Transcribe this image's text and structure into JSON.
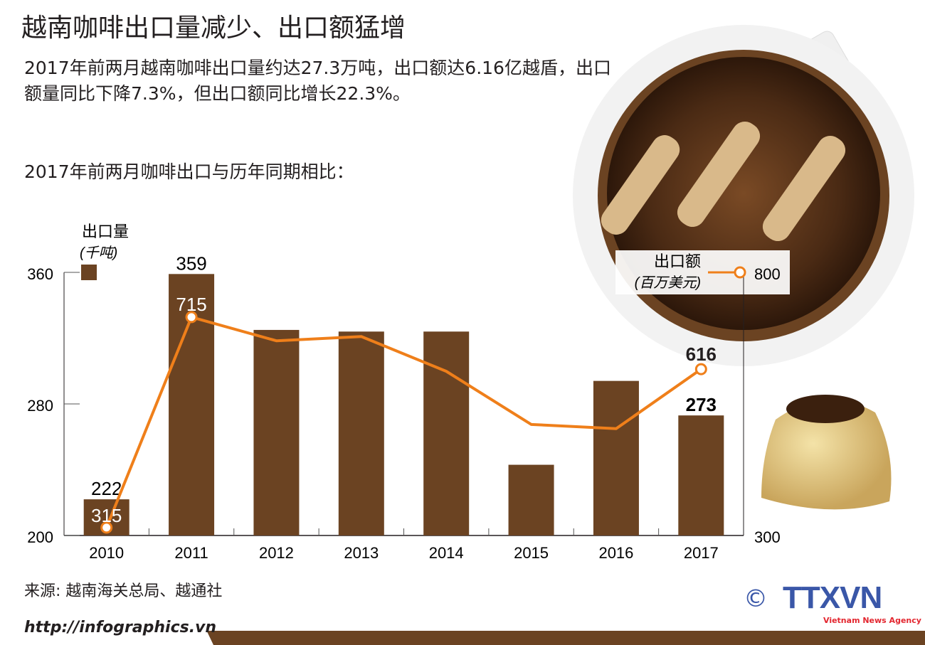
{
  "title": "越南咖啡出口量减少、出口额猛增",
  "subtitle": "2017年前两月越南咖啡出口量约达27.3万吨，出口额达6.16亿越盾，出口额量同比下降7.3%，但出口额同比增长22.3%。",
  "chart_label": "2017年前两月咖啡出口与历年同期相比：",
  "source": "来源: 越南海关总局、越通社",
  "url": "http://infographics.vn",
  "logo": {
    "copyright": "©",
    "text": "TTXVN",
    "tagline": "Vietnam News Agency"
  },
  "colors": {
    "bar": "#6b4322",
    "line": "#ef7f1a",
    "footer": "#6b4322",
    "logo_blue": "#3a57a8",
    "logo_red": "#e3262f"
  },
  "chart_data": {
    "type": "bar+line",
    "categories": [
      "2010",
      "2011",
      "2012",
      "2013",
      "2014",
      "2015",
      "2016",
      "2017"
    ],
    "series": [
      {
        "name": "出口量",
        "unit": "(千吨)",
        "type": "bar",
        "axis": "left",
        "values": [
          222,
          359,
          325,
          324,
          324,
          243,
          294,
          273
        ],
        "labels": [
          "222",
          "359",
          "",
          "",
          "",
          "",
          "",
          "273"
        ]
      },
      {
        "name": "出口额",
        "unit": "(百万美元)",
        "type": "line",
        "axis": "right",
        "values": [
          315,
          715,
          670,
          678,
          612,
          511,
          503,
          616
        ],
        "labels": [
          "315",
          "715",
          "",
          "",
          "",
          "",
          "",
          "616"
        ]
      }
    ],
    "left_axis": {
      "ticks": [
        "200",
        "280",
        "360"
      ],
      "range": [
        200,
        360
      ]
    },
    "right_axis": {
      "ticks": [
        "300",
        "800"
      ],
      "range": [
        300,
        800
      ]
    },
    "grid": false
  }
}
